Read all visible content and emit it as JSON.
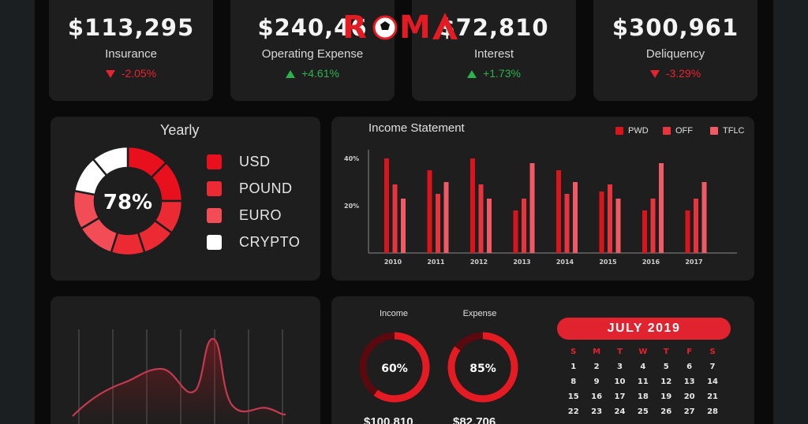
{
  "brand": {
    "logo_text": "ROMA"
  },
  "kpis": [
    {
      "value": "$113,295",
      "label": "Insurance",
      "delta": "-2.05%",
      "direction": "down"
    },
    {
      "value": "$240,46",
      "label": "Operating Expense",
      "delta": "+4.61%",
      "direction": "up"
    },
    {
      "value": "$72,810",
      "label": "Interest",
      "delta": "+1.73%",
      "direction": "up"
    },
    {
      "value": "$300,961",
      "label": "Deliquency",
      "delta": "-3.29%",
      "direction": "down"
    }
  ],
  "yearly": {
    "title": "Yearly",
    "center_value": "78%",
    "legend": [
      {
        "label": "USD",
        "color": "#e8101c"
      },
      {
        "label": "POUND",
        "color": "#ec2a33"
      },
      {
        "label": "EURO",
        "color": "#f24c57"
      },
      {
        "label": "CRYPTO",
        "color": "#ffffff"
      }
    ]
  },
  "income_statement": {
    "title": "Income Statement",
    "legend": [
      {
        "label": "PWD",
        "color": "#d8141c"
      },
      {
        "label": "OFF",
        "color": "#e8343c"
      },
      {
        "label": "TFLC",
        "color": "#f05a64"
      }
    ]
  },
  "chart_data": [
    {
      "type": "bar",
      "title": "Income Statement",
      "categories": [
        "2010",
        "2011",
        "2012",
        "2013",
        "2014",
        "2015",
        "2016",
        "2017"
      ],
      "yticks": [
        "20%",
        "40%"
      ],
      "ylim": [
        0,
        50
      ],
      "series": [
        {
          "name": "PWD",
          "color": "#d8141c",
          "values": [
            40,
            35,
            40,
            18,
            35,
            26,
            18,
            18
          ]
        },
        {
          "name": "OFF",
          "color": "#e8343c",
          "values": [
            29,
            25,
            29,
            23,
            25,
            29,
            23,
            23
          ]
        },
        {
          "name": "TFLC",
          "color": "#f05a64",
          "values": [
            23,
            30,
            23,
            38,
            30,
            23,
            38,
            30
          ]
        }
      ]
    },
    {
      "type": "pie",
      "title": "Yearly",
      "categories": [
        "USD",
        "POUND",
        "EURO",
        "CRYPTO"
      ],
      "values": [
        25,
        30,
        23,
        22
      ]
    }
  ],
  "rings": [
    {
      "label": "Income",
      "value": "60%",
      "percent": 60,
      "amount": "$100,810"
    },
    {
      "label": "Expense",
      "value": "85%",
      "percent": 85,
      "amount": "$82,706"
    }
  ],
  "calendar": {
    "month": "JULY 2019",
    "weekdays": [
      "S",
      "M",
      "T",
      "W",
      "T",
      "F",
      "S"
    ],
    "weeks": [
      [
        "1",
        "2",
        "3",
        "4",
        "5",
        "6",
        "7"
      ],
      [
        "8",
        "9",
        "10",
        "11",
        "12",
        "13",
        "14"
      ],
      [
        "15",
        "16",
        "17",
        "18",
        "19",
        "20",
        "21"
      ],
      [
        "22",
        "23",
        "24",
        "25",
        "26",
        "27",
        "28"
      ]
    ]
  }
}
